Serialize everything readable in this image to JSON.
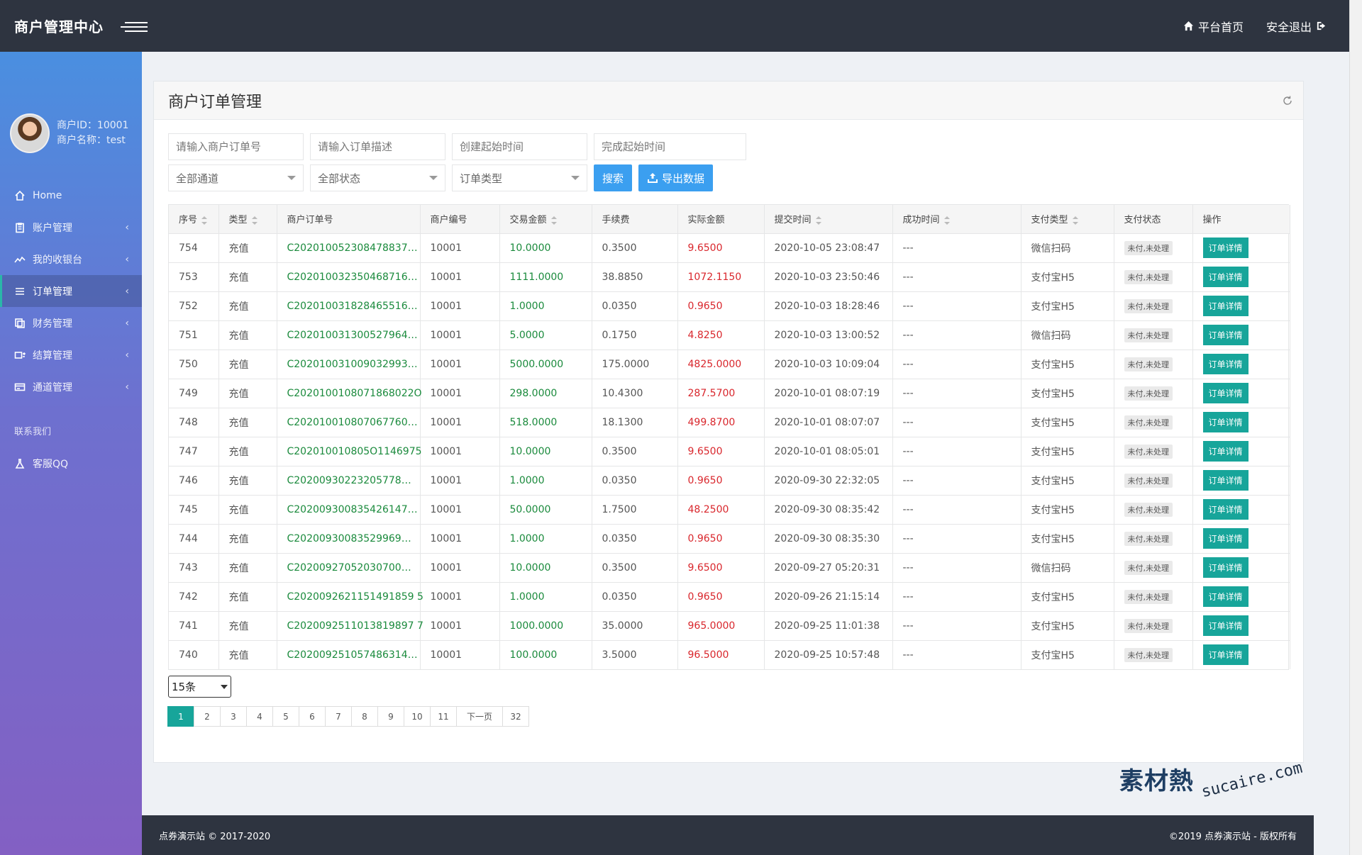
{
  "header": {
    "brand": "商户管理中心",
    "home_label": "平台首页",
    "logout_label": "安全退出"
  },
  "sidebar": {
    "user_id_label": "商户ID：10001",
    "user_name_label": "商户名称：test",
    "items": [
      {
        "label": "Home",
        "icon": "home-icon",
        "has_arrow": false
      },
      {
        "label": "账户管理",
        "icon": "clipboard-icon",
        "has_arrow": true
      },
      {
        "label": "我的收银台",
        "icon": "chart-line-icon",
        "has_arrow": true
      },
      {
        "label": "订单管理",
        "icon": "list-icon",
        "has_arrow": true,
        "active": true
      },
      {
        "label": "财务管理",
        "icon": "copy-icon",
        "has_arrow": true
      },
      {
        "label": "结算管理",
        "icon": "transfer-icon",
        "has_arrow": true
      },
      {
        "label": "通道管理",
        "icon": "card-icon",
        "has_arrow": true
      }
    ],
    "section_title": "联系我们",
    "contact_label": "客服QQ"
  },
  "panel": {
    "title": "商户订单管理"
  },
  "filters": {
    "order_no_placeholder": "请输入商户订单号",
    "order_desc_placeholder": "请输入订单描述",
    "create_time_placeholder": "创建起始时间",
    "finish_time_placeholder": "完成起始时间",
    "channel_select": "全部通道",
    "status_select": "全部状态",
    "type_select": "订单类型",
    "search_label": "搜索",
    "export_label": "导出数据"
  },
  "table": {
    "headers": [
      "序号",
      "类型",
      "商户订单号",
      "商户编号",
      "交易金额",
      "手续费",
      "实际金额",
      "提交时间",
      "成功时间",
      "支付类型",
      "支付状态",
      "操作"
    ],
    "rows": [
      {
        "id": "754",
        "type": "充值",
        "order_no": "C202010052308478837…",
        "merchant": "10001",
        "amount": "10.0000",
        "fee": "0.3500",
        "actual": "9.6500",
        "submit_time": "2020-10-05 23:08:47",
        "success_time": "---",
        "pay_type": "微信扫码",
        "status": "未付,未处理",
        "action": "订单详情"
      },
      {
        "id": "753",
        "type": "充值",
        "order_no": "C202010032350468716…",
        "merchant": "10001",
        "amount": "1111.0000",
        "fee": "38.8850",
        "actual": "1072.1150",
        "submit_time": "2020-10-03 23:50:46",
        "success_time": "---",
        "pay_type": "支付宝H5",
        "status": "未付,未处理",
        "action": "订单详情"
      },
      {
        "id": "752",
        "type": "充值",
        "order_no": "C202010031828465516…",
        "merchant": "10001",
        "amount": "1.0000",
        "fee": "0.0350",
        "actual": "0.9650",
        "submit_time": "2020-10-03 18:28:46",
        "success_time": "---",
        "pay_type": "支付宝H5",
        "status": "未付,未处理",
        "action": "订单详情"
      },
      {
        "id": "751",
        "type": "充值",
        "order_no": "C202010031300527964…",
        "merchant": "10001",
        "amount": "5.0000",
        "fee": "0.1750",
        "actual": "4.8250",
        "submit_time": "2020-10-03 13:00:52",
        "success_time": "---",
        "pay_type": "微信扫码",
        "status": "未付,未处理",
        "action": "订单详情"
      },
      {
        "id": "750",
        "type": "充值",
        "order_no": "C202010031009032993…",
        "merchant": "10001",
        "amount": "5000.0000",
        "fee": "175.0000",
        "actual": "4825.0000",
        "submit_time": "2020-10-03 10:09:04",
        "success_time": "---",
        "pay_type": "支付宝H5",
        "status": "未付,未处理",
        "action": "订单详情"
      },
      {
        "id": "749",
        "type": "充值",
        "order_no": "C2020100108071868022O",
        "merchant": "10001",
        "amount": "298.0000",
        "fee": "10.4300",
        "actual": "287.5700",
        "submit_time": "2020-10-01 08:07:19",
        "success_time": "---",
        "pay_type": "支付宝H5",
        "status": "未付,未处理",
        "action": "订单详情"
      },
      {
        "id": "748",
        "type": "充值",
        "order_no": "C202010010807067760…",
        "merchant": "10001",
        "amount": "518.0000",
        "fee": "18.1300",
        "actual": "499.8700",
        "submit_time": "2020-10-01 08:07:07",
        "success_time": "---",
        "pay_type": "支付宝H5",
        "status": "未付,未处理",
        "action": "订单详情"
      },
      {
        "id": "747",
        "type": "充值",
        "order_no": "C202010010805O1146975",
        "merchant": "10001",
        "amount": "10.0000",
        "fee": "0.3500",
        "actual": "9.6500",
        "submit_time": "2020-10-01 08:05:01",
        "success_time": "---",
        "pay_type": "支付宝H5",
        "status": "未付,未处理",
        "action": "订单详情"
      },
      {
        "id": "746",
        "type": "充值",
        "order_no": "C20200930223205778…",
        "merchant": "10001",
        "amount": "1.0000",
        "fee": "0.0350",
        "actual": "0.9650",
        "submit_time": "2020-09-30 22:32:05",
        "success_time": "---",
        "pay_type": "支付宝H5",
        "status": "未付,未处理",
        "action": "订单详情"
      },
      {
        "id": "745",
        "type": "充值",
        "order_no": "C202009300835426147…",
        "merchant": "10001",
        "amount": "50.0000",
        "fee": "1.7500",
        "actual": "48.2500",
        "submit_time": "2020-09-30 08:35:42",
        "success_time": "---",
        "pay_type": "支付宝H5",
        "status": "未付,未处理",
        "action": "订单详情"
      },
      {
        "id": "744",
        "type": "充值",
        "order_no": "C20200930083529969…",
        "merchant": "10001",
        "amount": "1.0000",
        "fee": "0.0350",
        "actual": "0.9650",
        "submit_time": "2020-09-30 08:35:30",
        "success_time": "---",
        "pay_type": "支付宝H5",
        "status": "未付,未处理",
        "action": "订单详情"
      },
      {
        "id": "743",
        "type": "充值",
        "order_no": "C20200927052030700…",
        "merchant": "10001",
        "amount": "10.0000",
        "fee": "0.3500",
        "actual": "9.6500",
        "submit_time": "2020-09-27 05:20:31",
        "success_time": "---",
        "pay_type": "微信扫码",
        "status": "未付,未处理",
        "action": "订单详情"
      },
      {
        "id": "742",
        "type": "充值",
        "order_no": "C2020092621151491859 5",
        "merchant": "10001",
        "amount": "1.0000",
        "fee": "0.0350",
        "actual": "0.9650",
        "submit_time": "2020-09-26 21:15:14",
        "success_time": "---",
        "pay_type": "支付宝H5",
        "status": "未付,未处理",
        "action": "订单详情"
      },
      {
        "id": "741",
        "type": "充值",
        "order_no": "C2020092511013819897 7",
        "merchant": "10001",
        "amount": "1000.0000",
        "fee": "35.0000",
        "actual": "965.0000",
        "submit_time": "2020-09-25 11:01:38",
        "success_time": "---",
        "pay_type": "支付宝H5",
        "status": "未付,未处理",
        "action": "订单详情"
      },
      {
        "id": "740",
        "type": "充值",
        "order_no": "C202009251057486314…",
        "merchant": "10001",
        "amount": "100.0000",
        "fee": "3.5000",
        "actual": "96.5000",
        "submit_time": "2020-09-25 10:57:48",
        "success_time": "---",
        "pay_type": "支付宝H5",
        "status": "未付,未处理",
        "action": "订单详情"
      }
    ]
  },
  "pagination": {
    "page_size": "15条",
    "pages": [
      "1",
      "2",
      "3",
      "4",
      "5",
      "6",
      "7",
      "8",
      "9",
      "10",
      "11",
      "下一页",
      "32"
    ],
    "active_page": "1"
  },
  "footer": {
    "left": "点券演示站 © 2017-2020",
    "right": "©2019 点券演示站 - 版权所有"
  },
  "watermark": {
    "main": "素材熱",
    "sub": "sucaire.com"
  },
  "colors": {
    "topbar": "#2e3440",
    "accent": "#17a59a",
    "button": "#3b9ff0",
    "amount_green": "#1a8a3c",
    "amount_red": "#d9262c"
  }
}
